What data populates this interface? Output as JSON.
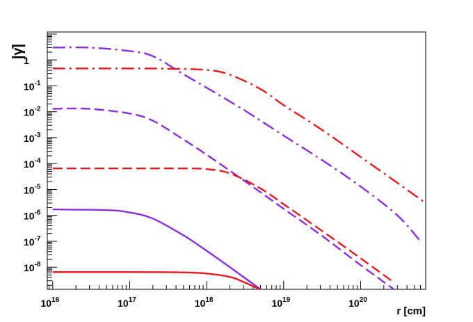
{
  "chart_data": {
    "type": "line",
    "title": "",
    "xlabel": "r [cm]",
    "ylabel": "|γ̇|",
    "x_scale": "log",
    "y_scale": "log",
    "xlim": [
      8500000000000000.0,
      7e+20
    ],
    "ylim": [
      1.4e-09,
      12
    ],
    "grid": false,
    "legend": "none",
    "x_ticks": [
      {
        "value": 1e+16,
        "base": "10",
        "exp": "16"
      },
      {
        "value": 1e+17,
        "base": "10",
        "exp": "17"
      },
      {
        "value": 1e+18,
        "base": "10",
        "exp": "18"
      },
      {
        "value": 1e+19,
        "base": "10",
        "exp": "19"
      },
      {
        "value": 1e+20,
        "base": "10",
        "exp": "20"
      }
    ],
    "y_ticks": [
      {
        "value": 1,
        "base": "1",
        "exp": ""
      },
      {
        "value": 0.1,
        "base": "10",
        "exp": "-1"
      },
      {
        "value": 0.01,
        "base": "10",
        "exp": "-2"
      },
      {
        "value": 0.001,
        "base": "10",
        "exp": "-3"
      },
      {
        "value": 0.0001,
        "base": "10",
        "exp": "-4"
      },
      {
        "value": 1e-05,
        "base": "10",
        "exp": "-5"
      },
      {
        "value": 1e-06,
        "base": "10",
        "exp": "-6"
      },
      {
        "value": 1e-07,
        "base": "10",
        "exp": "-7"
      },
      {
        "value": 1e-08,
        "base": "10",
        "exp": "-8"
      }
    ],
    "series": [
      {
        "style": "dashdot",
        "color": "#8B2BE2",
        "x": [
          1e+16,
          3e+16,
          1e+17,
          2e+17,
          5e+17,
          1e+18,
          3e+18,
          1e+19,
          3e+19,
          1e+20,
          3e+20,
          6e+20
        ],
        "y": [
          3.0,
          3.0,
          2.2,
          1.4,
          0.28,
          0.085,
          0.012,
          0.0012,
          0.00015,
          1.3e-05,
          1e-06,
          1e-07
        ]
      },
      {
        "style": "dashdot",
        "color": "#E8191C",
        "x": [
          1e+16,
          5e+16,
          1e+17,
          3e+17,
          1e+18,
          2e+18,
          5e+18,
          1e+19,
          3e+19,
          1e+20,
          3e+20,
          7e+20
        ],
        "y": [
          0.47,
          0.47,
          0.47,
          0.46,
          0.41,
          0.27,
          0.075,
          0.018,
          0.0022,
          0.00018,
          1.8e-05,
          3e-06
        ]
      },
      {
        "style": "dashed",
        "color": "#8B2BE2",
        "x": [
          1e+16,
          3e+16,
          1e+17,
          2e+17,
          5e+17,
          1e+18,
          3e+18,
          1e+19,
          3e+19,
          1e+20,
          2.7e+20
        ],
        "y": [
          0.013,
          0.013,
          0.0085,
          0.0045,
          0.00085,
          0.00022,
          2.3e-05,
          1.8e-06,
          1.8e-07,
          1.2e-08,
          1.4e-09
        ]
      },
      {
        "style": "dashed",
        "color": "#E8191C",
        "x": [
          1e+16,
          1e+17,
          5e+17,
          1e+18,
          2e+18,
          5e+18,
          1e+19,
          3e+19,
          1e+20,
          2.7e+20
        ],
        "y": [
          6.5e-05,
          6.5e-05,
          6.5e-05,
          6.1e-05,
          4.2e-05,
          1.1e-05,
          2.7e-06,
          2.8e-07,
          2.2e-08,
          2.6e-09
        ]
      },
      {
        "style": "solid",
        "color": "#8B2BE2",
        "x": [
          1e+16,
          5e+16,
          1e+17,
          2e+17,
          5e+17,
          1e+18,
          2e+18,
          5e+18
        ],
        "y": [
          1.7e-06,
          1.6e-06,
          1.3e-06,
          7.5e-07,
          1.7e-07,
          4.3e-08,
          1e-08,
          1.4e-09
        ]
      },
      {
        "style": "solid",
        "color": "#E8191C",
        "x": [
          1e+16,
          1e+17,
          5e+17,
          1e+18,
          2e+18,
          3e+18,
          4.9e+18
        ],
        "y": [
          6.5e-09,
          6.5e-09,
          6.3e-09,
          5.7e-09,
          4.2e-09,
          2.7e-09,
          1.4e-09
        ]
      }
    ]
  }
}
